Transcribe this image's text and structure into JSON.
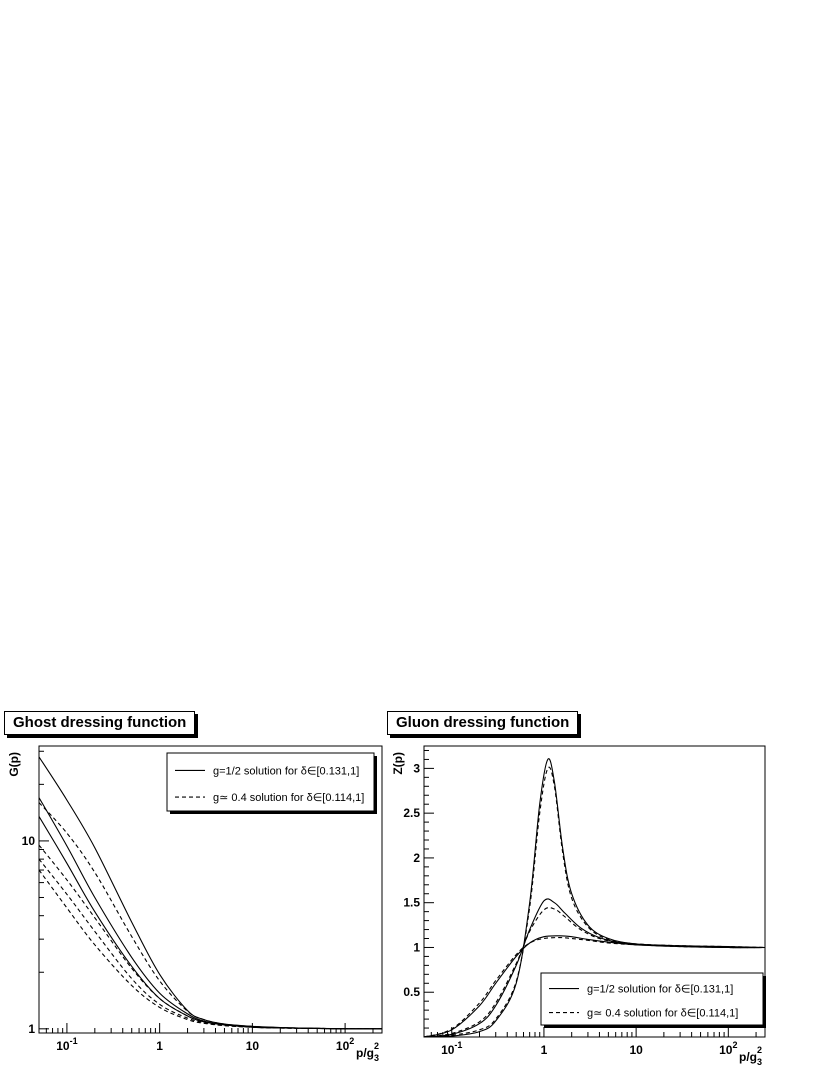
{
  "panels": {
    "left": {
      "title": "Ghost dressing function"
    },
    "right": {
      "title": "Gluon dressing function"
    }
  },
  "chart_data": [
    {
      "type": "line",
      "title": "Ghost dressing function",
      "xlabel": "p/g_3^2",
      "ylabel": "G(p)",
      "xscale": "log",
      "yscale": "log",
      "xlim": [
        0.05,
        250
      ],
      "ylim": [
        0.95,
        32
      ],
      "xticks": [
        {
          "value": 0.1,
          "base": "10",
          "exp": "-1"
        },
        {
          "value": 1,
          "base": "1",
          "exp": ""
        },
        {
          "value": 10,
          "base": "10",
          "exp": ""
        },
        {
          "value": 100,
          "base": "10",
          "exp": "2"
        }
      ],
      "yticks": [
        {
          "value": 1,
          "label": "1"
        },
        {
          "value": 10,
          "label": "10"
        }
      ],
      "legend": {
        "position": "top-right",
        "entries": [
          {
            "label": "g=1/2 solution for δ∈[0.131,1]",
            "style": "solid"
          },
          {
            "label": "g≃ 0.4 solution for δ∈[0.114,1]",
            "style": "dashed"
          }
        ]
      },
      "series": [
        {
          "style": "solid",
          "x": [
            0.05,
            0.1,
            0.2,
            0.5,
            1,
            2,
            3,
            5,
            10,
            20,
            50,
            100,
            250
          ],
          "y": [
            28,
            16.5,
            9.2,
            3.7,
            1.95,
            1.25,
            1.12,
            1.06,
            1.03,
            1.015,
            1.005,
            1.0,
            1.0
          ]
        },
        {
          "style": "solid",
          "x": [
            0.05,
            0.1,
            0.2,
            0.5,
            1,
            2,
            3,
            5,
            10,
            20,
            50,
            100,
            250
          ],
          "y": [
            17,
            9.4,
            5.0,
            2.4,
            1.55,
            1.2,
            1.1,
            1.05,
            1.03,
            1.015,
            1.005,
            1.0,
            1.0
          ]
        },
        {
          "style": "solid",
          "x": [
            0.05,
            0.1,
            0.2,
            0.5,
            1,
            2,
            3,
            5,
            10,
            20,
            50,
            100,
            250
          ],
          "y": [
            13.5,
            7.6,
            4.2,
            2.15,
            1.45,
            1.17,
            1.09,
            1.05,
            1.02,
            1.01,
            1.005,
            1.0,
            1.0
          ]
        },
        {
          "style": "dashed",
          "x": [
            0.05,
            0.1,
            0.2,
            0.5,
            1,
            2,
            3,
            5,
            10,
            20,
            50,
            100,
            250
          ],
          "y": [
            16,
            11,
            6.8,
            3.1,
            1.8,
            1.24,
            1.12,
            1.06,
            1.03,
            1.015,
            1.005,
            1.0,
            1.0
          ]
        },
        {
          "style": "dashed",
          "x": [
            0.05,
            0.1,
            0.2,
            0.5,
            1,
            2,
            3,
            5,
            10,
            20,
            50,
            100,
            250
          ],
          "y": [
            9.5,
            6.2,
            3.9,
            2.1,
            1.45,
            1.17,
            1.09,
            1.05,
            1.02,
            1.01,
            1.005,
            1.0,
            1.0
          ]
        },
        {
          "style": "dashed",
          "x": [
            0.05,
            0.1,
            0.2,
            0.5,
            1,
            2,
            3,
            5,
            10,
            20,
            50,
            100,
            250
          ],
          "y": [
            8.0,
            5.2,
            3.3,
            1.85,
            1.35,
            1.14,
            1.08,
            1.04,
            1.02,
            1.01,
            1.005,
            1.0,
            1.0
          ]
        },
        {
          "style": "dashed",
          "x": [
            0.05,
            0.1,
            0.2,
            0.5,
            1,
            2,
            3,
            5,
            10,
            20,
            50,
            100,
            250
          ],
          "y": [
            7.0,
            4.4,
            2.8,
            1.7,
            1.3,
            1.12,
            1.07,
            1.04,
            1.02,
            1.01,
            1.005,
            1.0,
            1.0
          ]
        }
      ]
    },
    {
      "type": "line",
      "title": "Gluon dressing function",
      "xlabel": "p/g_3^2",
      "ylabel": "Z(p)",
      "xscale": "log",
      "yscale": "linear",
      "xlim": [
        0.05,
        250
      ],
      "ylim": [
        0,
        3.25
      ],
      "xticks": [
        {
          "value": 0.1,
          "base": "10",
          "exp": "-1"
        },
        {
          "value": 1,
          "base": "1",
          "exp": ""
        },
        {
          "value": 10,
          "base": "10",
          "exp": ""
        },
        {
          "value": 100,
          "base": "10",
          "exp": "2"
        }
      ],
      "yticks": [
        {
          "value": 0.5,
          "label": "0.5"
        },
        {
          "value": 1,
          "label": "1"
        },
        {
          "value": 1.5,
          "label": "1.5"
        },
        {
          "value": 2,
          "label": "2"
        },
        {
          "value": 2.5,
          "label": "2.5"
        },
        {
          "value": 3,
          "label": "3"
        }
      ],
      "legend": {
        "position": "bottom-right",
        "entries": [
          {
            "label": "g=1/2 solution for δ∈[0.131,1]",
            "style": "solid"
          },
          {
            "label": "g≃ 0.4 solution for δ∈[0.114,1]",
            "style": "dashed"
          }
        ]
      },
      "series": [
        {
          "style": "solid",
          "x": [
            0.05,
            0.1,
            0.2,
            0.3,
            0.5,
            0.7,
            0.9,
            1.1,
            1.3,
            1.6,
            2,
            3,
            5,
            10,
            30,
            100,
            250
          ],
          "y": [
            0.0,
            0.01,
            0.06,
            0.18,
            0.6,
            1.5,
            2.6,
            3.1,
            2.85,
            2.1,
            1.6,
            1.25,
            1.1,
            1.04,
            1.02,
            1.01,
            1.0
          ]
        },
        {
          "style": "dashed",
          "x": [
            0.05,
            0.1,
            0.2,
            0.3,
            0.5,
            0.7,
            0.9,
            1.1,
            1.3,
            1.6,
            2,
            3,
            5,
            10,
            30,
            100,
            250
          ],
          "y": [
            0.0,
            0.02,
            0.08,
            0.2,
            0.62,
            1.45,
            2.5,
            3.0,
            2.8,
            2.05,
            1.55,
            1.23,
            1.09,
            1.04,
            1.02,
            1.01,
            1.0
          ]
        },
        {
          "style": "solid",
          "x": [
            0.05,
            0.1,
            0.2,
            0.3,
            0.5,
            0.7,
            1.0,
            1.3,
            1.7,
            2.5,
            4,
            8,
            20,
            100,
            250
          ],
          "y": [
            0.0,
            0.03,
            0.15,
            0.35,
            0.8,
            1.2,
            1.52,
            1.5,
            1.38,
            1.22,
            1.11,
            1.04,
            1.02,
            1.0,
            1.0
          ]
        },
        {
          "style": "dashed",
          "x": [
            0.05,
            0.1,
            0.2,
            0.3,
            0.5,
            0.7,
            1.0,
            1.3,
            1.7,
            2.5,
            4,
            8,
            20,
            100,
            250
          ],
          "y": [
            0.0,
            0.04,
            0.17,
            0.38,
            0.82,
            1.18,
            1.42,
            1.43,
            1.34,
            1.2,
            1.1,
            1.04,
            1.02,
            1.0,
            1.0
          ]
        },
        {
          "style": "solid",
          "x": [
            0.05,
            0.1,
            0.2,
            0.3,
            0.5,
            0.7,
            1.0,
            1.5,
            2,
            3,
            5,
            10,
            30,
            100,
            250
          ],
          "y": [
            0.0,
            0.08,
            0.35,
            0.6,
            0.9,
            1.05,
            1.12,
            1.13,
            1.12,
            1.09,
            1.06,
            1.03,
            1.01,
            1.0,
            1.0
          ]
        },
        {
          "style": "dashed",
          "x": [
            0.05,
            0.1,
            0.2,
            0.3,
            0.5,
            0.7,
            1.0,
            1.5,
            2,
            3,
            5,
            10,
            30,
            100,
            250
          ],
          "y": [
            0.0,
            0.09,
            0.38,
            0.63,
            0.92,
            1.05,
            1.1,
            1.11,
            1.1,
            1.08,
            1.05,
            1.03,
            1.01,
            1.0,
            1.0
          ]
        }
      ]
    }
  ]
}
